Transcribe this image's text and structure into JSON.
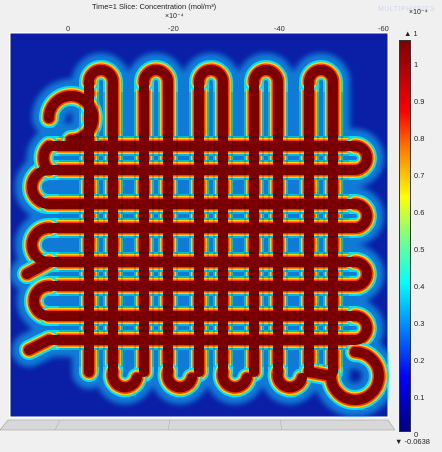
{
  "header": {
    "title": "Time=1   Slice: Concentration (mol/m³)",
    "exponent": "×10⁻⁴"
  },
  "axis_ticks": [
    "0",
    "-20",
    "-40",
    "-60"
  ],
  "colorbar": {
    "exponent": "×10⁻⁴",
    "max_label": "▲ 1",
    "min_label": "▼ -0.0638",
    "ticks": [
      "1",
      "0.9",
      "0.8",
      "0.7",
      "0.6",
      "0.5",
      "0.4",
      "0.3",
      "0.2",
      "0.1",
      "0"
    ],
    "colors": [
      "#800000",
      "#ff0000",
      "#ffff00",
      "#00ffff",
      "#0000ff",
      "#00007f"
    ]
  },
  "watermark": "MULTIPHYSICS",
  "colors": {
    "background": "#0a1ea6",
    "channel": "#7a0000",
    "channel_edge": "#ffd200",
    "frame": "#ffffff"
  }
}
